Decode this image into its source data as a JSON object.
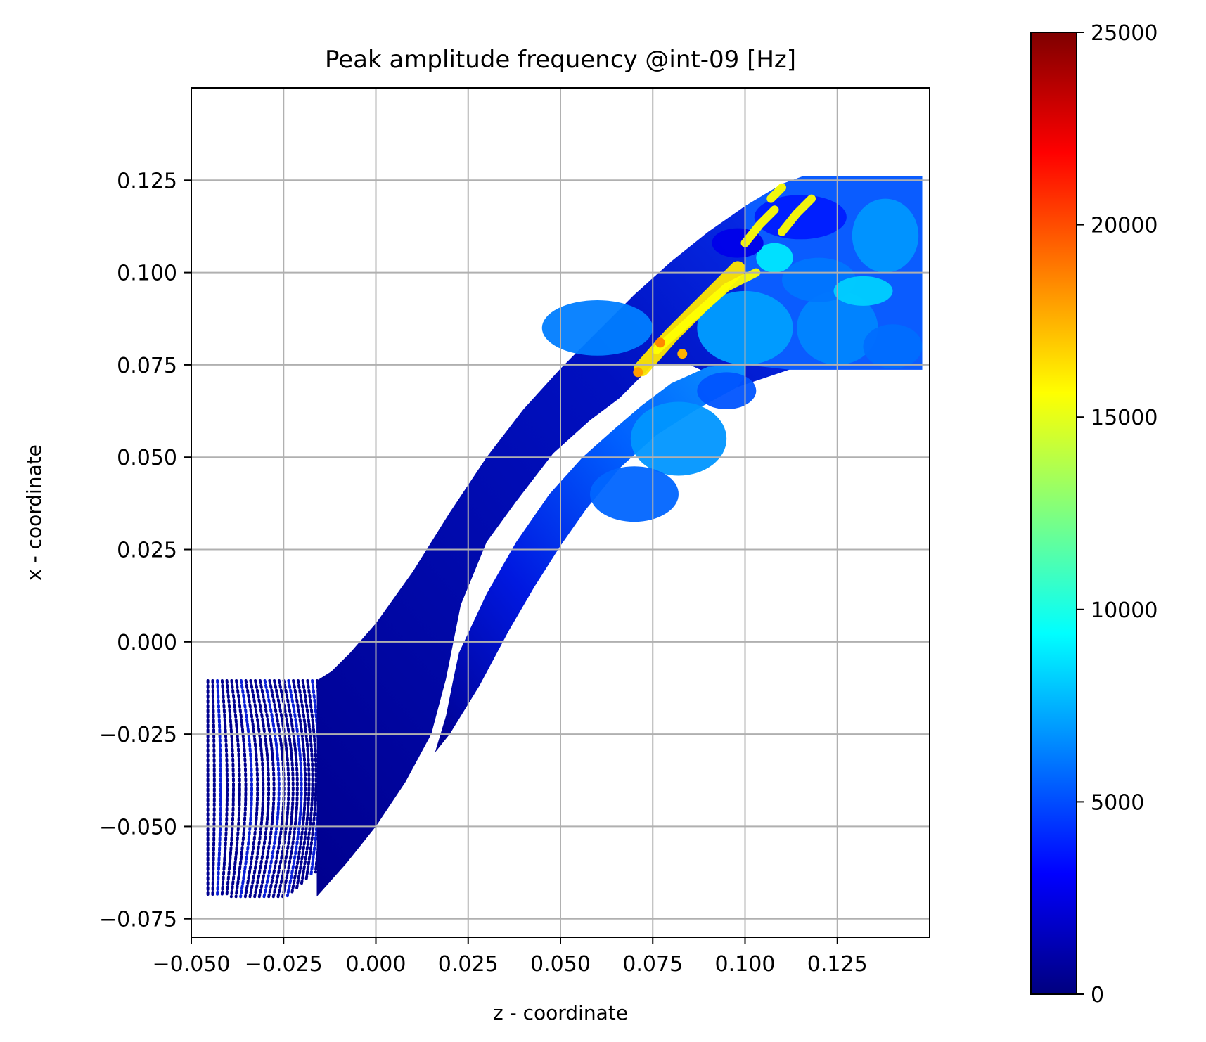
{
  "chart_data": {
    "type": "scatter",
    "title": "Peak amplitude frequency @int-09 [Hz]",
    "xlabel": "z - coordinate",
    "ylabel": "x - coordinate",
    "xlim": [
      -0.05,
      0.15
    ],
    "ylim": [
      -0.08,
      0.15
    ],
    "grid": true,
    "xticks": [
      -0.05,
      -0.025,
      0.0,
      0.025,
      0.05,
      0.075,
      0.1,
      0.125
    ],
    "xtick_labels": [
      "−0.050",
      "−0.025",
      "0.000",
      "0.025",
      "0.050",
      "0.075",
      "0.100",
      "0.125"
    ],
    "yticks": [
      -0.075,
      -0.05,
      -0.025,
      0.0,
      0.025,
      0.05,
      0.075,
      0.1,
      0.125
    ],
    "ytick_labels": [
      "−0.075",
      "−0.050",
      "−0.025",
      "0.000",
      "0.025",
      "0.050",
      "0.075",
      "0.100",
      "0.125"
    ],
    "colormap": "jet",
    "colorbar": {
      "range": [
        0,
        25000
      ],
      "ticks": [
        0,
        5000,
        10000,
        15000,
        20000,
        25000
      ],
      "tick_labels": [
        "0",
        "5000",
        "10000",
        "15000",
        "20000",
        "25000"
      ],
      "stops": [
        "#00007f",
        "#0000ff",
        "#007fff",
        "#00ffff",
        "#7fff7f",
        "#ffff00",
        "#ff7f00",
        "#ff0000",
        "#7f0000"
      ]
    },
    "regions": [
      {
        "region": "inlet grid",
        "z": [
          -0.046,
          -0.015
        ],
        "x": [
          -0.069,
          -0.01
        ],
        "value": 800
      },
      {
        "region": "upper passage",
        "z": [
          -0.01,
          0.06
        ],
        "x": [
          -0.03,
          0.08
        ],
        "value": 1200
      },
      {
        "region": "lower passage",
        "z": [
          0.02,
          0.11
        ],
        "x": [
          -0.025,
          0.08
        ],
        "value": 4000
      },
      {
        "region": "outlet",
        "z": [
          0.06,
          0.148
        ],
        "x": [
          0.073,
          0.126
        ],
        "value": 5500
      },
      {
        "region": "high-frequency streak",
        "z": [
          0.07,
          0.12
        ],
        "x": [
          0.072,
          0.122
        ],
        "value": 16000
      }
    ]
  }
}
